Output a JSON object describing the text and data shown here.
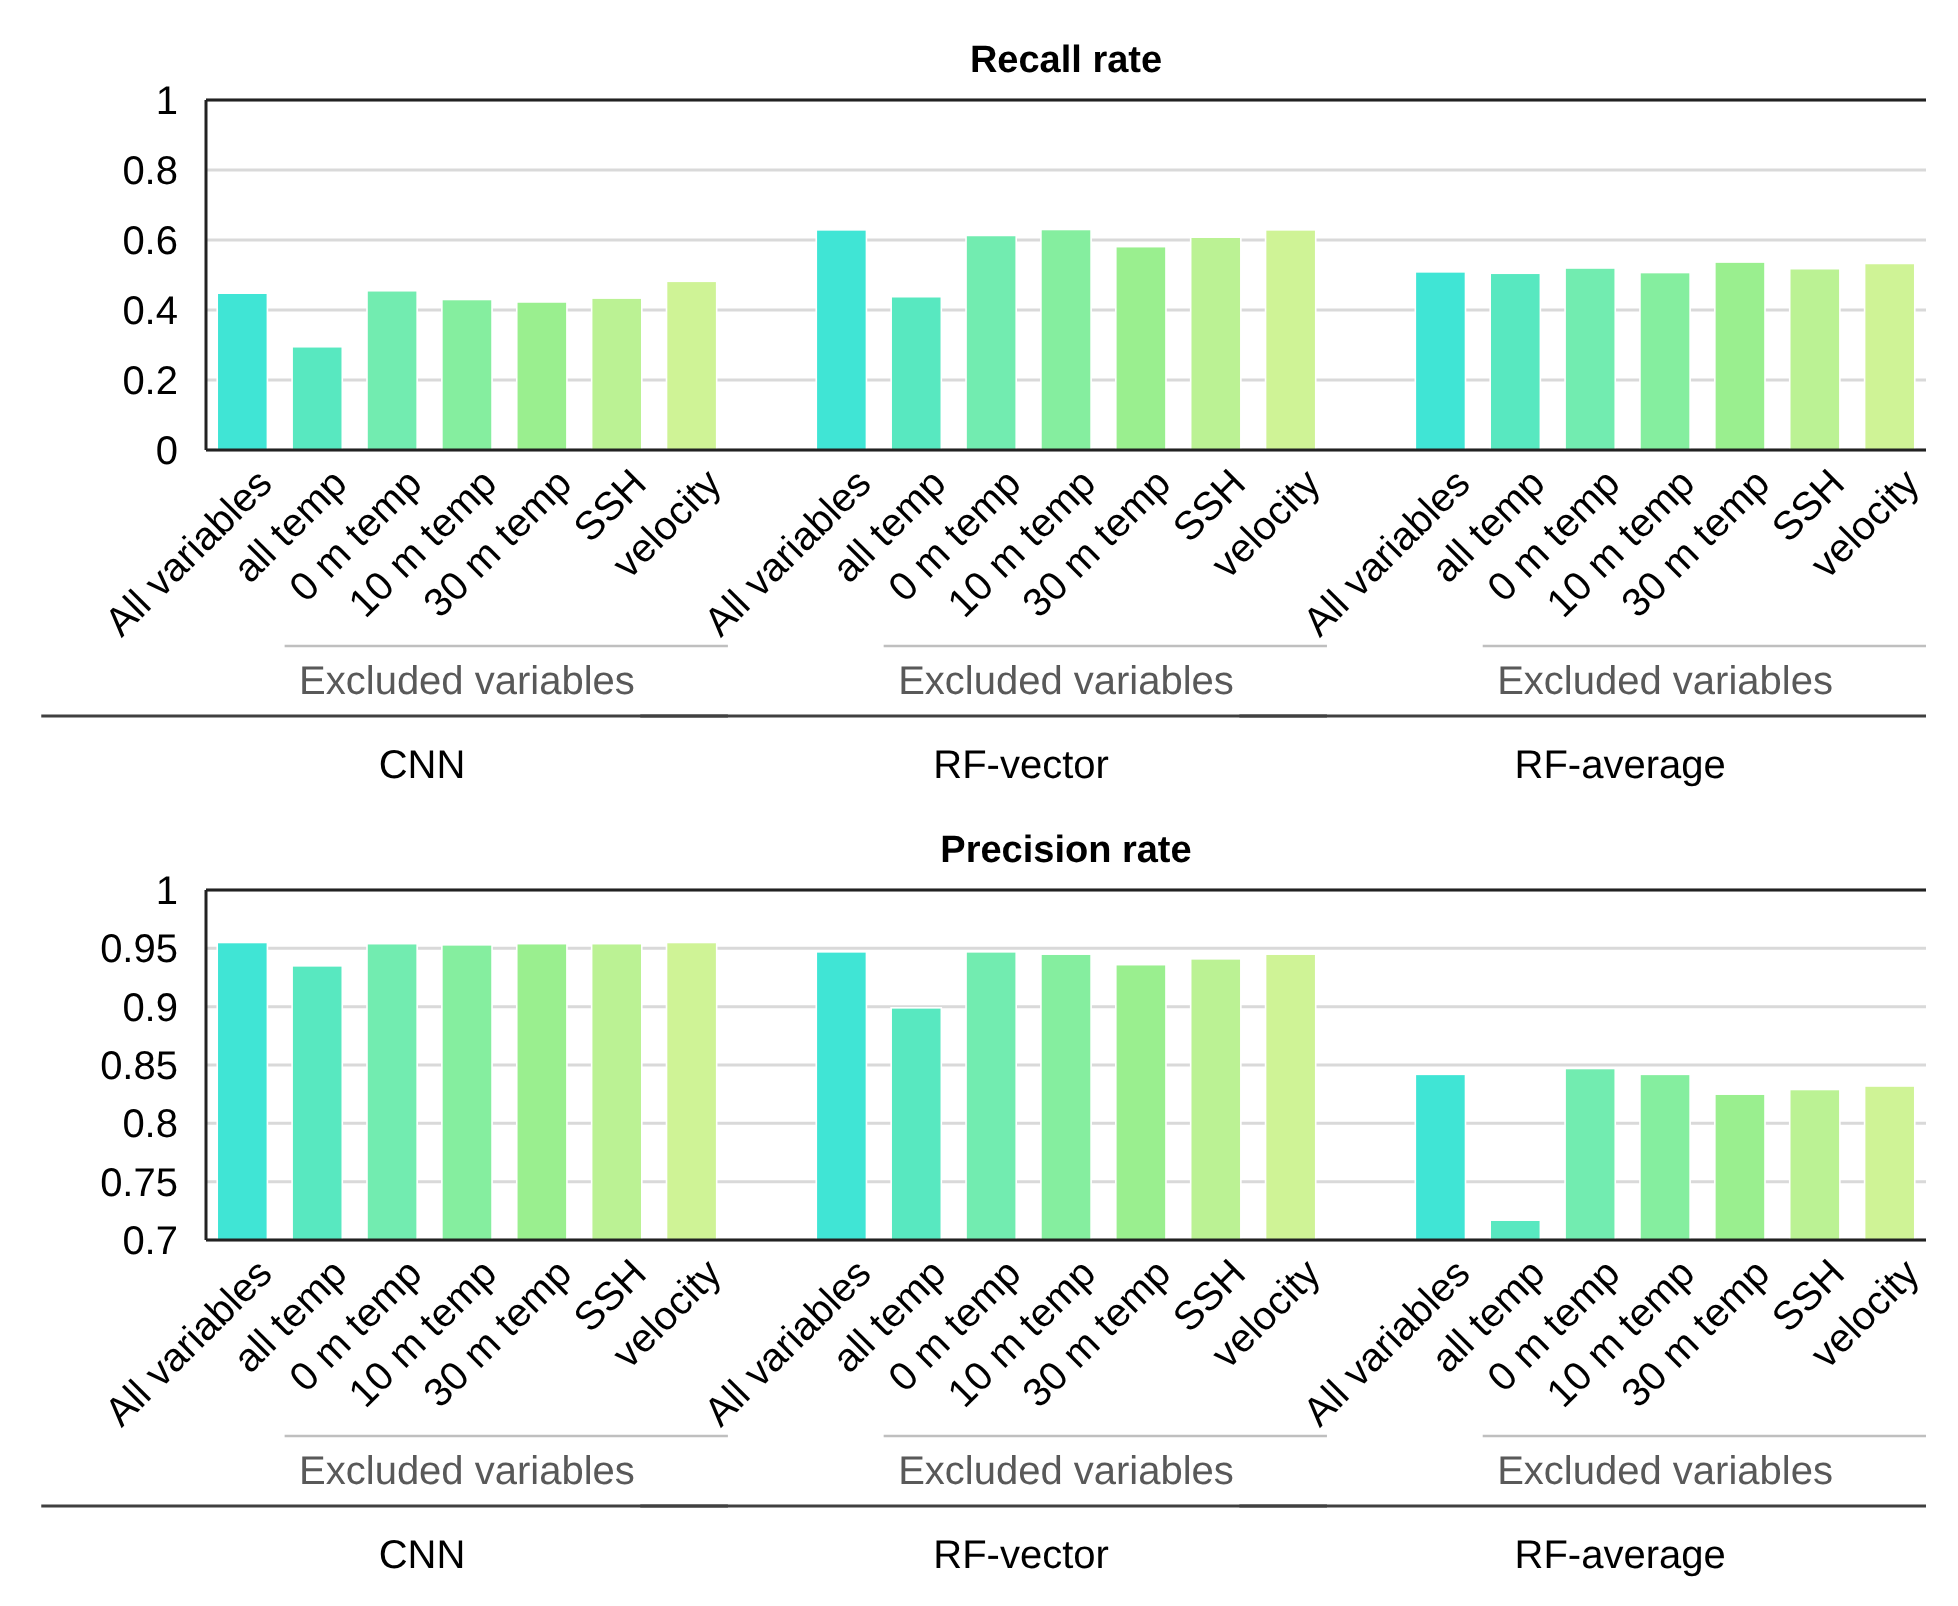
{
  "chart_data": [
    {
      "type": "bar",
      "title": "Recall rate",
      "categories": [
        "All variables",
        "all temp",
        "0 m temp",
        "10 m temp",
        "30 m temp",
        "SSH",
        "velocity",
        null,
        "All variables",
        "all temp",
        "0 m temp",
        "10 m temp",
        "30 m temp",
        "SSH",
        "velocity",
        null,
        "All variables",
        "all temp",
        "0 m temp",
        "10 m temp",
        "30 m temp",
        "SSH",
        "velocity"
      ],
      "values": [
        0.448,
        0.295,
        0.455,
        0.43,
        0.423,
        0.434,
        0.482,
        null,
        0.629,
        0.438,
        0.613,
        0.63,
        0.581,
        0.608,
        0.629,
        null,
        0.509,
        0.505,
        0.52,
        0.507,
        0.537,
        0.518,
        0.533
      ],
      "colors": [
        "#40e5d5",
        "#58e8c0",
        "#72ecb0",
        "#85ee9f",
        "#9aef8f",
        "#bbf294",
        "#cff396",
        null,
        "#40e5d5",
        "#58e8c0",
        "#72ecb0",
        "#85ee9f",
        "#9aef8f",
        "#bbf294",
        "#cff396",
        null,
        "#40e5d5",
        "#58e8c0",
        "#72ecb0",
        "#85ee9f",
        "#9aef8f",
        "#bbf294",
        "#cff396"
      ],
      "ylim": [
        0,
        1
      ],
      "yticks": [
        0,
        0.2,
        0.4,
        0.6,
        0.8,
        1
      ],
      "grid": true,
      "annotations": [
        "Excluded variables",
        "CNN",
        "Excluded variables",
        "RF-vector",
        "Excluded variables",
        "RF-average"
      ]
    },
    {
      "type": "bar",
      "title": "Precision rate",
      "categories": [
        "All variables",
        "all temp",
        "0 m temp",
        "10 m temp",
        "30 m temp",
        "SSH",
        "velocity",
        null,
        "All variables",
        "all temp",
        "0 m temp",
        "10 m temp",
        "30 m temp",
        "SSH",
        "velocity",
        null,
        "All variables",
        "all temp",
        "0 m temp",
        "10 m temp",
        "30 m temp",
        "SSH",
        "velocity"
      ],
      "values": [
        0.955,
        0.935,
        0.954,
        0.953,
        0.954,
        0.954,
        0.955,
        null,
        0.947,
        0.899,
        0.947,
        0.945,
        0.936,
        0.941,
        0.945,
        null,
        0.842,
        0.717,
        0.847,
        0.842,
        0.825,
        0.829,
        0.832
      ],
      "colors": [
        "#40e5d5",
        "#58e8c0",
        "#72ecb0",
        "#85ee9f",
        "#9aef8f",
        "#bbf294",
        "#cff396",
        null,
        "#40e5d5",
        "#58e8c0",
        "#72ecb0",
        "#85ee9f",
        "#9aef8f",
        "#bbf294",
        "#cff396",
        null,
        "#40e5d5",
        "#58e8c0",
        "#72ecb0",
        "#85ee9f",
        "#9aef8f",
        "#bbf294",
        "#cff396"
      ],
      "ylim": [
        0.7,
        1
      ],
      "yticks": [
        0.7,
        0.75,
        0.8,
        0.85,
        0.9,
        0.95,
        1
      ],
      "grid": true,
      "annotations": [
        "Excluded variables",
        "CNN",
        "Excluded variables",
        "RF-vector",
        "Excluded variables",
        "RF-average"
      ]
    }
  ]
}
